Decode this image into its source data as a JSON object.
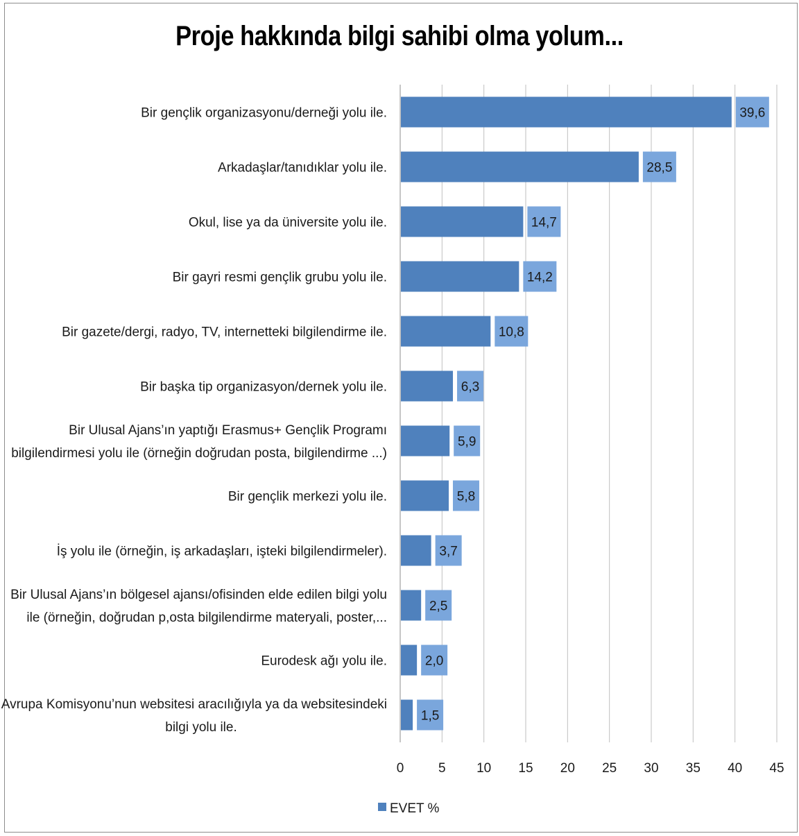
{
  "chart_data": {
    "type": "bar",
    "orientation": "horizontal",
    "title": "Proje hakkında bilgi sahibi olma yolum...",
    "categories": [
      [
        "Bir gençlik organizasyonu/derneği yolu ile."
      ],
      [
        "Arkadaşlar/tanıdıklar yolu ile."
      ],
      [
        "Okul, lise ya da üniversite yolu ile."
      ],
      [
        "Bir gayri resmi gençlik grubu yolu ile."
      ],
      [
        "Bir gazete/dergi, radyo, TV, internetteki bilgilendirme ile."
      ],
      [
        "Bir başka tip organizasyon/dernek yolu ile."
      ],
      [
        "Bir Ulusal Ajans’ın yaptığı Erasmus+ Gençlik Programı",
        "bilgilendirmesi yolu ile (örneğin doğrudan posta, bilgilendirme ...)"
      ],
      [
        "Bir gençlik merkezi yolu ile."
      ],
      [
        "İş yolu ile (örneğin, iş arkadaşları, işteki bilgilendirmeler)."
      ],
      [
        "Bir Ulusal Ajans’ın bölgesel ajansı/ofisinden elde edilen bilgi yolu",
        "ile (örneğin, doğrudan p,osta bilgilendirme materyali, poster,..."
      ],
      [
        "Eurodesk ağı yolu ile."
      ],
      [
        "Avrupa Komisyonu’nun websitesi aracılığıyla ya da websitesindeki",
        "bilgi yolu ile."
      ]
    ],
    "series": [
      {
        "name": "EVET %",
        "color": "#4f81bd",
        "label_box_color": "#7aa6dc",
        "values": [
          39.6,
          28.5,
          14.7,
          14.2,
          10.8,
          6.3,
          5.9,
          5.8,
          3.7,
          2.5,
          2.0,
          1.5
        ],
        "value_labels": [
          "39,6",
          "28,5",
          "14,7",
          "14,2",
          "10,8",
          "6,3",
          "5,9",
          "5,8",
          "3,7",
          "2,5",
          "2,0",
          "1,5"
        ]
      }
    ],
    "xlim": [
      0,
      45
    ],
    "x_ticks": [
      0,
      5,
      10,
      15,
      20,
      25,
      30,
      35,
      40,
      45
    ],
    "grid": true,
    "legend": "bottom"
  }
}
